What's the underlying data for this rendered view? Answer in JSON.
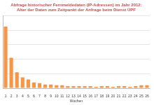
{
  "chart_data": {
    "type": "bar",
    "title": [
      "Abfrage historischer Fernmeldedaten (IP-Adressen) im Jahr 2012:",
      "Alter der Daten zum Zeitpunkt der Anfrage beim Dienst ÜPF"
    ],
    "x_label": "Wochen",
    "categories": [
      "1",
      "2",
      "3",
      "4",
      "5",
      "6",
      "7",
      "8",
      "9",
      "10",
      "11",
      "12",
      "13",
      "14",
      "15",
      "16",
      "17",
      "18",
      "19",
      "20",
      "21",
      "22",
      "23",
      "24",
      "25",
      "26"
    ],
    "values": [
      85,
      42,
      22,
      15,
      12,
      8,
      7,
      5,
      5,
      4,
      4,
      3,
      3,
      3,
      3,
      3,
      2,
      3,
      3,
      2,
      3,
      3,
      2,
      3,
      4,
      4
    ],
    "color": "#f79646",
    "ylim": [
      0,
      100
    ],
    "yticks": [
      0,
      20,
      40,
      60,
      80,
      100
    ],
    "grid": true,
    "tick_labels": "x"
  }
}
